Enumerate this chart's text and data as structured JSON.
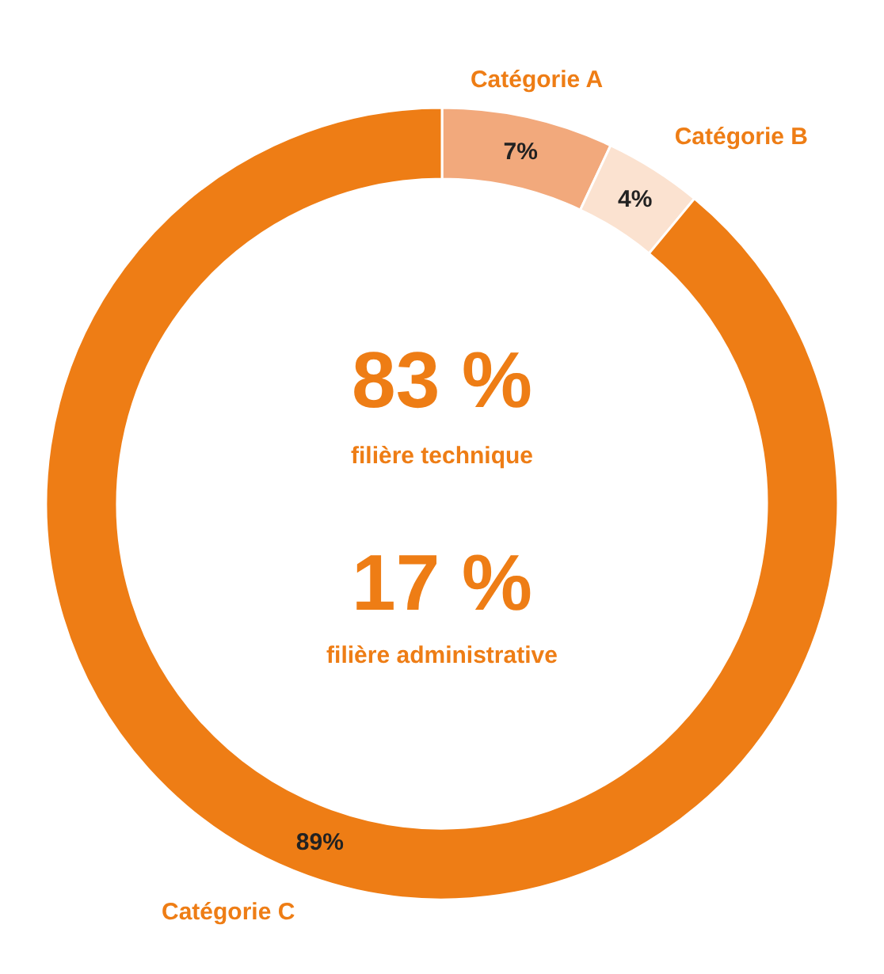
{
  "chart_data": {
    "type": "donut",
    "categories": [
      "Catégorie A",
      "Catégorie B",
      "Catégorie C"
    ],
    "values": [
      7,
      4,
      89
    ],
    "colors": [
      "#f2a97c",
      "#fbe2d0",
      "#ee7d15"
    ],
    "value_labels": [
      "7%",
      "4%",
      "89%"
    ],
    "annotations": [
      "83 %",
      "filière technique",
      "17 %",
      "filière administrative"
    ]
  }
}
